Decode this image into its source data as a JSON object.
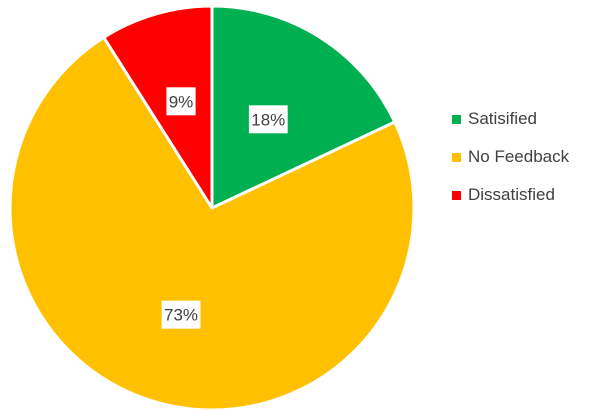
{
  "chart_data": {
    "type": "pie",
    "title": "",
    "start_angle_deg": 0,
    "direction": "clockwise",
    "legend_position": "right",
    "slices": [
      {
        "label": "Satisified",
        "value": 18,
        "display": "18%",
        "color": "#00B050"
      },
      {
        "label": "No Feedback",
        "value": 73,
        "display": "73%",
        "color": "#FFC000"
      },
      {
        "label": "Dissatisfied",
        "value": 9,
        "display": "9%",
        "color": "#FF0000"
      }
    ]
  }
}
